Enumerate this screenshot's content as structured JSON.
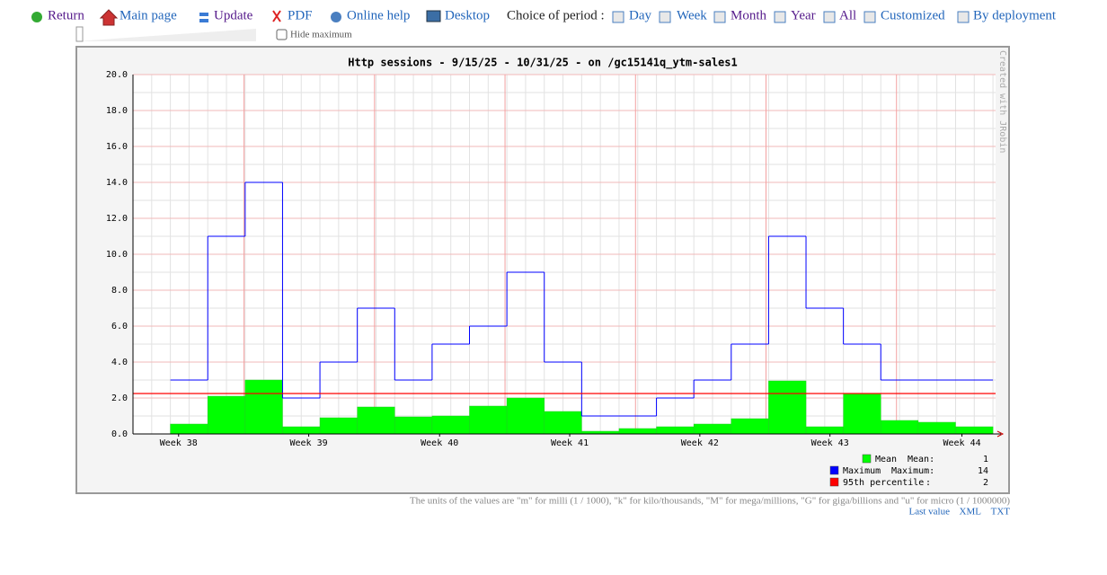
{
  "toolbar": {
    "links": [
      "Return",
      "Main page",
      "Update",
      "PDF",
      "Online help",
      "Desktop"
    ],
    "period_label": "Choice of period :",
    "periods": [
      "Day",
      "Week",
      "Month",
      "Year",
      "All",
      "Customized",
      "By deployment"
    ],
    "hide_maximum": "Hide maximum"
  },
  "chart_data": {
    "type": "step-bar",
    "title": "Http sessions - 9/15/25 - 10/31/25 - on /gc15141q_ytm-sales1",
    "watermark": "Created with JRobin",
    "xlim": [
      -1,
      22.07
    ],
    "xticks": [
      {
        "value": 0.22,
        "label": "Week 38"
      },
      {
        "value": 3.7,
        "label": "Week 39"
      },
      {
        "value": 7.2,
        "label": "Week 40"
      },
      {
        "value": 10.68,
        "label": "Week 41"
      },
      {
        "value": 14.16,
        "label": "Week 42"
      },
      {
        "value": 17.64,
        "label": "Week 43"
      },
      {
        "value": 21.17,
        "label": "Week 44"
      }
    ],
    "xgrid_lines": [
      1.97,
      5.46,
      8.95,
      12.44,
      15.93,
      19.42
    ],
    "ylim": [
      0,
      20
    ],
    "yticks": [
      {
        "value": 0,
        "label": "0.0"
      },
      {
        "value": 2,
        "label": "2.0"
      },
      {
        "value": 4,
        "label": "4.0"
      },
      {
        "value": 6,
        "label": "6.0"
      },
      {
        "value": 8,
        "label": "8.0"
      },
      {
        "value": 10,
        "label": "10.0"
      },
      {
        "value": 12,
        "label": "12.0"
      },
      {
        "value": 14,
        "label": "14.0"
      },
      {
        "value": 16,
        "label": "16.0"
      },
      {
        "value": 18,
        "label": "18.0"
      },
      {
        "value": 20,
        "label": "20.0"
      }
    ],
    "grid": true,
    "series": [
      {
        "name": "Mean",
        "color": "#00ff00",
        "style": "bar",
        "values": [
          0.55,
          2.1,
          3.0,
          0.4,
          0.9,
          1.5,
          0.95,
          1.0,
          1.55,
          2.0,
          1.25,
          0.15,
          0.3,
          0.4,
          0.55,
          0.85,
          2.95,
          0.4,
          2.25,
          0.75,
          0.65,
          0.4
        ]
      },
      {
        "name": "Maximum",
        "color": "#0000ff",
        "style": "step",
        "values": [
          3,
          11,
          14,
          2,
          4,
          7,
          3,
          5,
          6,
          9,
          4,
          1,
          1,
          2,
          3,
          5,
          11,
          7,
          5,
          3,
          3,
          3
        ]
      },
      {
        "name": "95th percentile",
        "color": "#ff0000",
        "style": "hline",
        "values": [
          2.25
        ]
      }
    ],
    "legend_stats": [
      {
        "label": "Mean:",
        "value": 1
      },
      {
        "label": "Maximum:",
        "value": 14
      },
      {
        "label": ":",
        "value": 2
      }
    ]
  },
  "footer": {
    "units_note": "The units of the values are \"m\" for milli (1 / 1000), \"k\" for kilo/thousands, \"M\" for mega/millions, \"G\" for giga/billions and \"u\" for micro (1 / 1000000)",
    "links": [
      "Last value",
      "XML",
      "TXT"
    ]
  }
}
